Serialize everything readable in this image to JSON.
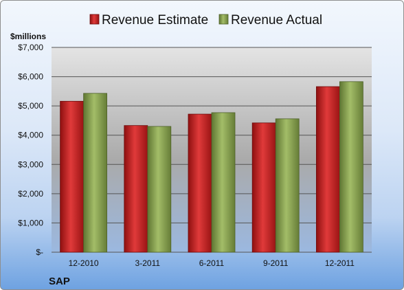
{
  "chart_data": {
    "type": "bar",
    "title": "",
    "unit_label": "$millions",
    "company": "SAP",
    "categories": [
      "12-2010",
      "3-2011",
      "6-2011",
      "9-2011",
      "12-2011"
    ],
    "series": [
      {
        "name": "Revenue Estimate",
        "color": "#cc2222",
        "values": [
          5160,
          4330,
          4720,
          4420,
          5660
        ]
      },
      {
        "name": "Revenue Actual",
        "color": "#8ea852",
        "values": [
          5430,
          4300,
          4770,
          4560,
          5830
        ]
      }
    ],
    "ylim": [
      0,
      7000
    ],
    "y_ticks": [
      {
        "value": 0,
        "label": "$-"
      },
      {
        "value": 1000,
        "label": "$1,000"
      },
      {
        "value": 2000,
        "label": "$2,000"
      },
      {
        "value": 3000,
        "label": "$3,000"
      },
      {
        "value": 4000,
        "label": "$4,000"
      },
      {
        "value": 5000,
        "label": "$5,000"
      },
      {
        "value": 6000,
        "label": "$6,000"
      },
      {
        "value": 7000,
        "label": "$7,000"
      }
    ],
    "grid": true,
    "legend_position": "top"
  }
}
